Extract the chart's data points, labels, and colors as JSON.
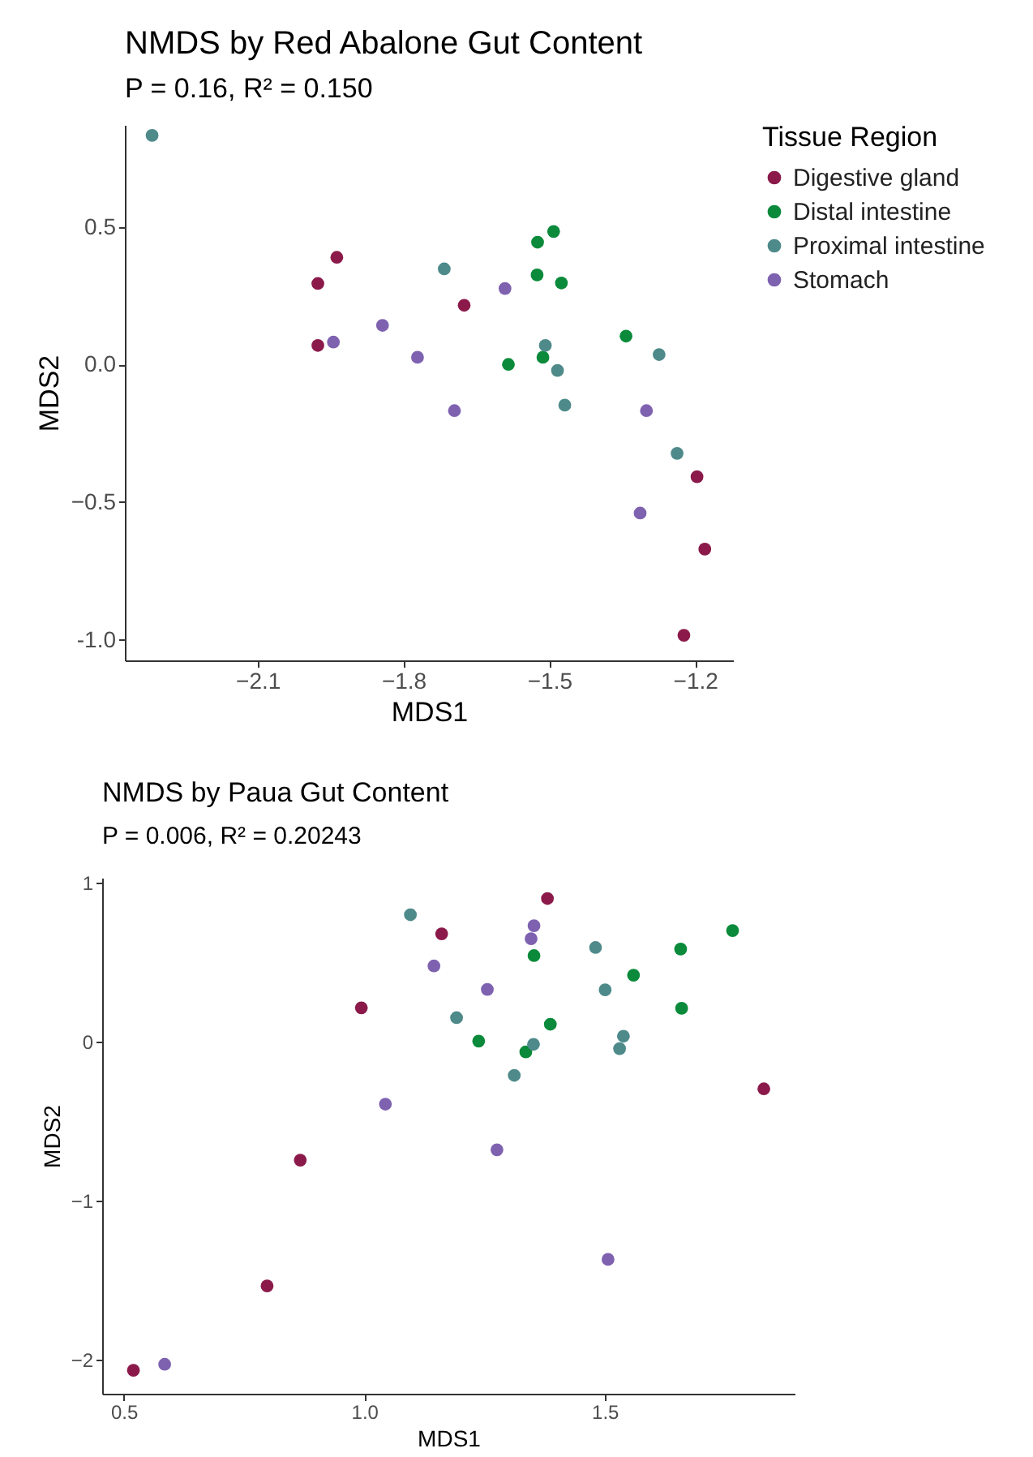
{
  "chart_data": [
    {
      "type": "scatter",
      "title": "NMDS by Red Abalone Gut Content",
      "subtitle": "P = 0.16, R² = 0.150",
      "xlabel": "MDS1",
      "ylabel": "MDS2",
      "legend_title": "Tissue Region",
      "legend": "right",
      "grid": false,
      "marker": "circle",
      "xlim": [
        -2.373,
        -1.122
      ],
      "ylim": [
        -1.075,
        0.87
      ],
      "xticks": [
        -2.1,
        -1.8,
        -1.5,
        -1.2
      ],
      "yticks": [
        {
          "value": -1,
          "label": "-1.0"
        },
        -0.5,
        {
          "value": 0,
          "label": "0.0"
        },
        0.5
      ],
      "series": [
        {
          "name": "Digestive gland",
          "color": "#8b1a4a",
          "x": [
            -1.937,
            -1.976,
            -1.976,
            -1.675,
            -1.196,
            -1.18,
            -1.223
          ],
          "values": [
            0.389,
            0.294,
            0.069,
            0.215,
            -0.408,
            -0.671,
            -0.984
          ]
        },
        {
          "name": "Distal intestine",
          "color": "#0a8a3a",
          "x": [
            -1.491,
            -1.524,
            -1.525,
            -1.475,
            -1.342,
            -1.584,
            -1.513
          ],
          "values": [
            0.483,
            0.444,
            0.325,
            0.296,
            0.103,
            0.0,
            0.026
          ]
        },
        {
          "name": "Proximal intestine",
          "color": "#4e8a8a",
          "x": [
            -2.317,
            -1.716,
            -1.508,
            -1.483,
            -1.468,
            -1.274,
            -1.237
          ],
          "values": [
            0.832,
            0.347,
            0.069,
            -0.022,
            -0.148,
            0.036,
            -0.323
          ]
        },
        {
          "name": "Stomach",
          "color": "#7e62b0",
          "x": [
            -1.944,
            -1.843,
            -1.771,
            -1.591,
            -1.695,
            -1.3,
            -1.313
          ],
          "values": [
            0.081,
            0.142,
            0.026,
            0.276,
            -0.168,
            -0.168,
            -0.54
          ]
        }
      ]
    },
    {
      "type": "scatter",
      "title": "NMDS by Paua Gut Content",
      "subtitle": "P = 0.006, R² = 0.20243",
      "xlabel": "MDS1",
      "ylabel": "MDS2",
      "grid": false,
      "marker": "circle",
      "xlim": [
        0.455,
        1.895
      ],
      "ylim": [
        -2.212,
        1.029
      ],
      "xticks": [
        0.5,
        {
          "value": 1,
          "label": "1.0"
        },
        1.5
      ],
      "yticks": [
        -2,
        -1,
        0,
        1
      ],
      "series": [
        {
          "color": "#8b1a4a",
          "x": [
            1.381,
            1.161,
            0.994,
            1.831,
            0.867,
            0.798,
            0.52
          ],
          "values": [
            0.899,
            0.677,
            0.212,
            -0.297,
            -0.745,
            -1.535,
            -2.065
          ]
        },
        {
          "color": "#0a8a3a",
          "x": [
            1.766,
            1.658,
            1.56,
            1.66,
            1.353,
            1.387,
            1.238,
            1.336
          ],
          "values": [
            0.697,
            0.581,
            0.417,
            0.209,
            0.54,
            0.109,
            0.003,
            -0.065
          ]
        },
        {
          "color": "#4e8a8a",
          "x": [
            1.096,
            1.481,
            1.501,
            1.192,
            1.539,
            1.531,
            1.352,
            1.312
          ],
          "values": [
            0.797,
            0.591,
            0.325,
            0.15,
            0.034,
            -0.044,
            -0.017,
            -0.212
          ]
        },
        {
          "color": "#7e62b0",
          "x": [
            1.353,
            1.347,
            1.145,
            1.256,
            1.044,
            1.276,
            1.507,
            0.585
          ],
          "values": [
            0.728,
            0.646,
            0.475,
            0.328,
            -0.393,
            -0.68,
            -1.368,
            -2.027
          ]
        }
      ]
    }
  ]
}
